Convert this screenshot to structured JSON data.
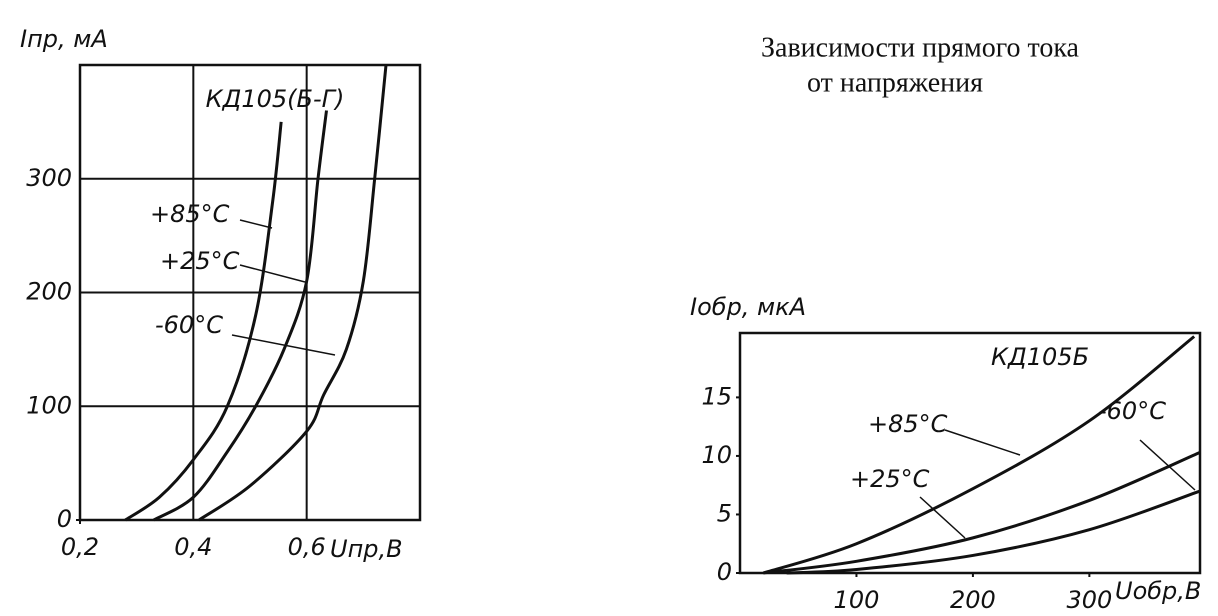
{
  "caption": [
    "Зависимости прямого тока",
    "от напряжения"
  ],
  "chart_data": [
    {
      "type": "line",
      "title": "КД105(Б-Г)",
      "x_label": "Uпр,В",
      "y_label": "Iпр, мА",
      "xlim": [
        0.2,
        0.8
      ],
      "ylim": [
        0,
        400
      ],
      "xticks": [
        {
          "value": 0.2,
          "label": "0,2"
        },
        {
          "value": 0.4,
          "label": "0,4"
        },
        {
          "value": 0.6,
          "label": "0,6"
        }
      ],
      "yticks": [
        0,
        100,
        200,
        300
      ],
      "grid": true,
      "series": [
        {
          "name": "+85°C",
          "color": "#111111",
          "x": [
            0.28,
            0.34,
            0.4,
            0.46,
            0.51,
            0.54,
            0.555
          ],
          "values": [
            0,
            20,
            53,
            100,
            180,
            280,
            350
          ]
        },
        {
          "name": "+25°C",
          "color": "#111111",
          "x": [
            0.33,
            0.4,
            0.46,
            0.51,
            0.56,
            0.6,
            0.62,
            0.635
          ],
          "values": [
            0,
            20,
            60,
            100,
            150,
            210,
            300,
            360
          ]
        },
        {
          "name": "-60°C",
          "color": "#111111",
          "x": [
            0.41,
            0.5,
            0.6,
            0.63,
            0.67,
            0.7,
            0.72,
            0.74
          ],
          "values": [
            0,
            30,
            78,
            110,
            150,
            210,
            300,
            400
          ]
        }
      ]
    },
    {
      "type": "line",
      "title": "КД105Б",
      "x_label": "Uобр,В",
      "y_label": "Iобр, мкА",
      "xlim": [
        0,
        395
      ],
      "ylim": [
        0,
        20.5
      ],
      "xticks": [
        100,
        200,
        300
      ],
      "yticks": [
        0,
        5,
        10,
        15
      ],
      "grid": false,
      "series": [
        {
          "name": "+85°C",
          "color": "#111111",
          "x": [
            20,
            100,
            200,
            300,
            390
          ],
          "values": [
            0,
            2.5,
            7.2,
            13,
            20.2
          ]
        },
        {
          "name": "+25°C",
          "color": "#111111",
          "x": [
            20,
            100,
            200,
            300,
            395
          ],
          "values": [
            0,
            1,
            3,
            6.2,
            10.3
          ]
        },
        {
          "name": "-60°C",
          "color": "#111111",
          "x": [
            40,
            100,
            200,
            300,
            395
          ],
          "values": [
            0,
            0.3,
            1.5,
            3.7,
            7
          ]
        }
      ]
    }
  ]
}
